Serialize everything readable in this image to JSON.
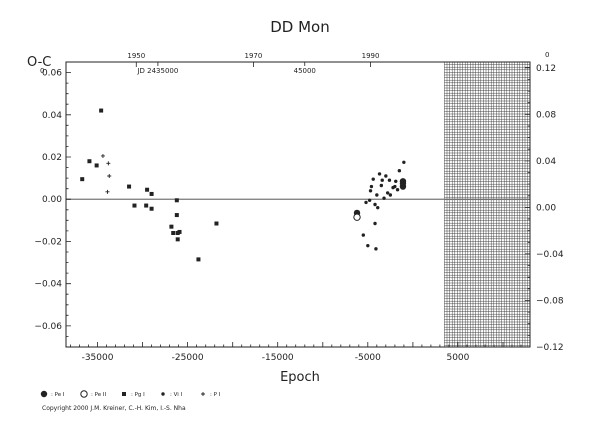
{
  "chart_data": {
    "type": "scatter",
    "title": "DD Mon",
    "xlabel": "Epoch",
    "ylabel": "O-C",
    "xlim": [
      -38500,
      13000
    ],
    "ylim": [
      -0.07,
      0.065
    ],
    "right_ylim": [
      -0.12,
      0.125
    ],
    "x_ticks": [
      -35000,
      -25000,
      -15000,
      -5000,
      5000
    ],
    "x_tick_labels": [
      "-35000",
      "-25000",
      "-15000",
      "-5000",
      "5000"
    ],
    "y_ticks": [
      0.06,
      0.04,
      0.02,
      0.0,
      -0.02,
      -0.04,
      -0.06
    ],
    "y_tick_labels": [
      "0.06",
      "0.04",
      "0.02",
      "0.00",
      "−0.02",
      "−0.04",
      "−0.06"
    ],
    "right_ticks": [
      0.12,
      0.08,
      0.04,
      0.0,
      -0.04,
      -0.08,
      -0.12
    ],
    "right_tick_labels": [
      "0.12",
      "0.08",
      "0.04",
      "0.00",
      "−0.04",
      "−0.08",
      "−0.12"
    ],
    "top_year_ticks": [
      {
        "label": "1950",
        "epoch": -30700
      },
      {
        "label": "1970",
        "epoch": -17700
      },
      {
        "label": "1990",
        "epoch": -4700
      }
    ],
    "jd_labels": [
      {
        "label": "JD 2435000",
        "epoch": -28300
      },
      {
        "label": "45000",
        "epoch": -12000
      }
    ],
    "left_corner_exp": "0",
    "right_corner_exp": "0",
    "hatched_region_from_epoch": 3500,
    "zero_line": true,
    "series": [
      {
        "name": "Pe I",
        "marker": "filled-circle",
        "points": [
          [
            -6200,
            -0.0065
          ],
          [
            -1100,
            0.006
          ],
          [
            -1100,
            0.0085
          ],
          [
            -1100,
            0.0075
          ]
        ]
      },
      {
        "name": "Pe II",
        "marker": "open-circle",
        "points": [
          [
            -6200,
            -0.0085
          ]
        ]
      },
      {
        "name": "Pg I",
        "marker": "filled-square",
        "points": [
          [
            -36700,
            0.0095
          ],
          [
            -35900,
            0.018
          ],
          [
            -35100,
            0.016
          ],
          [
            -34600,
            0.042
          ],
          [
            -31500,
            0.006
          ],
          [
            -30900,
            -0.003
          ],
          [
            -29600,
            -0.003
          ],
          [
            -29500,
            0.0045
          ],
          [
            -29000,
            0.0025
          ],
          [
            -29000,
            -0.0045
          ],
          [
            -26800,
            -0.013
          ],
          [
            -26600,
            -0.016
          ],
          [
            -26200,
            -0.0005
          ],
          [
            -26200,
            -0.0075
          ],
          [
            -26100,
            -0.016
          ],
          [
            -26100,
            -0.019
          ],
          [
            -25900,
            -0.0155
          ],
          [
            -23800,
            -0.0285
          ],
          [
            -21800,
            -0.0115
          ]
        ]
      },
      {
        "name": "Vi I",
        "marker": "filled-diamond",
        "points": [
          [
            -5500,
            -0.017
          ],
          [
            -5200,
            -0.0015
          ],
          [
            -5000,
            -0.022
          ],
          [
            -4800,
            -0.0005
          ],
          [
            -4700,
            0.004
          ],
          [
            -4600,
            0.006
          ],
          [
            -4400,
            0.0095
          ],
          [
            -4200,
            -0.0025
          ],
          [
            -4200,
            -0.0115
          ],
          [
            -4100,
            -0.0235
          ],
          [
            -4000,
            0.002
          ],
          [
            -3900,
            -0.004
          ],
          [
            -3700,
            0.012
          ],
          [
            -3500,
            0.0065
          ],
          [
            -3400,
            0.009
          ],
          [
            -3200,
            0.0005
          ],
          [
            -3000,
            0.011
          ],
          [
            -2800,
            0.003
          ],
          [
            -2600,
            0.009
          ],
          [
            -2500,
            0.002
          ],
          [
            -2200,
            0.0055
          ],
          [
            -2000,
            0.006
          ],
          [
            -1900,
            0.0085
          ],
          [
            -1700,
            0.0045
          ],
          [
            -1500,
            0.0135
          ],
          [
            -1000,
            0.0175
          ]
        ]
      },
      {
        "name": "P I",
        "marker": "plus",
        "points": [
          [
            -34400,
            0.0205
          ],
          [
            -33800,
            0.017
          ],
          [
            -33700,
            0.011
          ],
          [
            -33900,
            0.0035
          ]
        ]
      }
    ],
    "legend": [
      {
        "name": "Pe I",
        "label": ": Pe I"
      },
      {
        "name": "Pe II",
        "label": ": Pe II"
      },
      {
        "name": "Pg I",
        "label": ": Pg I"
      },
      {
        "name": "Vi I",
        "label": ": Vi I"
      },
      {
        "name": "P I",
        "label": ": P I"
      }
    ],
    "legend_placement": "bottom-left"
  },
  "copyright": "Copyright 2000 J.M. Kreiner, C.-H. Kim, I.-S. Nha",
  "colors": {
    "ink": "#222222",
    "background": "#ffffff",
    "zero_line": "#777777"
  }
}
